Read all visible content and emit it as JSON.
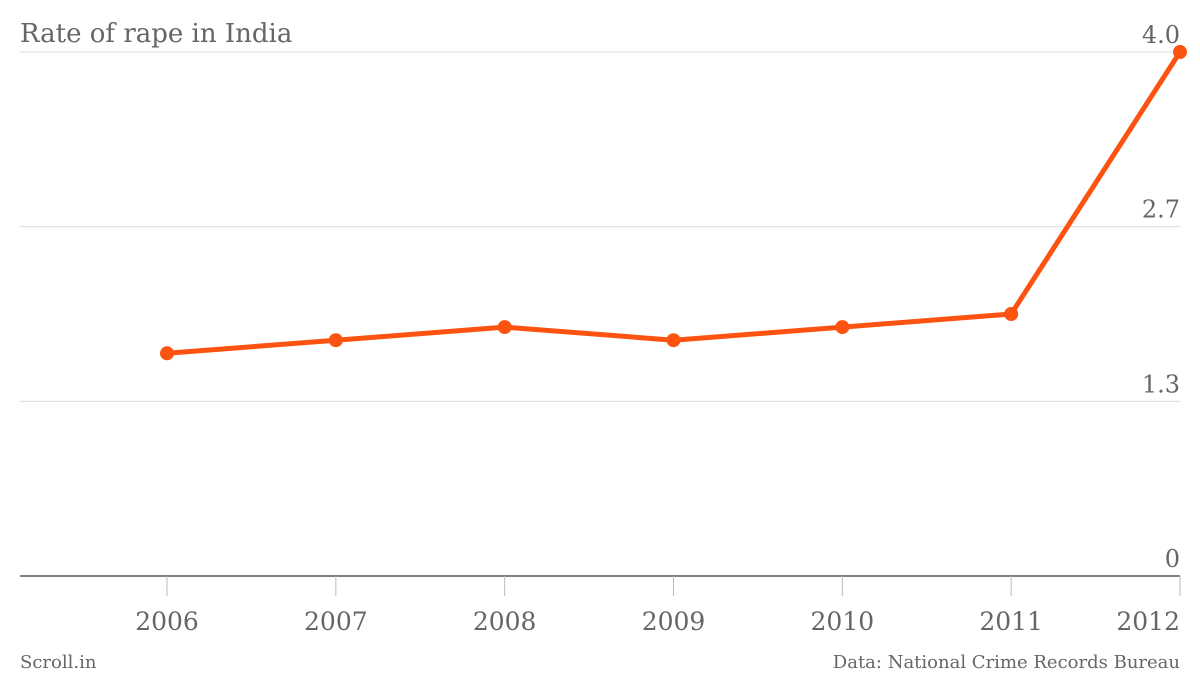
{
  "chart_data": {
    "type": "line",
    "title": "Rate of rape in India",
    "categories": [
      "2006",
      "2007",
      "2008",
      "2009",
      "2010",
      "2011",
      "2012"
    ],
    "series": [
      {
        "name": "Rate of rape",
        "color": "#fc5310",
        "values": [
          1.7,
          1.8,
          1.9,
          1.8,
          1.9,
          2.0,
          4.0
        ]
      }
    ],
    "ylim": [
      0,
      4.0
    ],
    "yticks": [
      0,
      {
        "value": 1.333,
        "label": "1.3"
      },
      {
        "value": 2.667,
        "label": "2.7"
      },
      {
        "value": 4.0,
        "label": "4.0"
      }
    ],
    "grid": true,
    "source_left": "Scroll.in",
    "source_right": "Data: National Crime Records Bureau"
  }
}
